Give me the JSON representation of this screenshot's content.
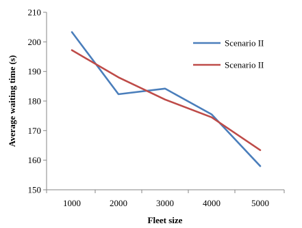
{
  "chart_data": {
    "type": "line",
    "title": "",
    "xlabel": "Fleet size",
    "ylabel": "Average waiting time (s)",
    "categories": [
      "1000",
      "2000",
      "3000",
      "4000",
      "5000"
    ],
    "ylim": [
      150,
      210
    ],
    "yticks": [
      150,
      160,
      170,
      180,
      190,
      200,
      210
    ],
    "grid": false,
    "legend_position": "right",
    "series": [
      {
        "name": "Scenario II",
        "color": "#4a7ebb",
        "values": [
          203.3,
          182.3,
          184.2,
          175.5,
          158.0
        ]
      },
      {
        "name": "Scenario II",
        "color": "#be4b48",
        "values": [
          197.2,
          188.0,
          180.5,
          174.5,
          163.4
        ]
      }
    ]
  }
}
